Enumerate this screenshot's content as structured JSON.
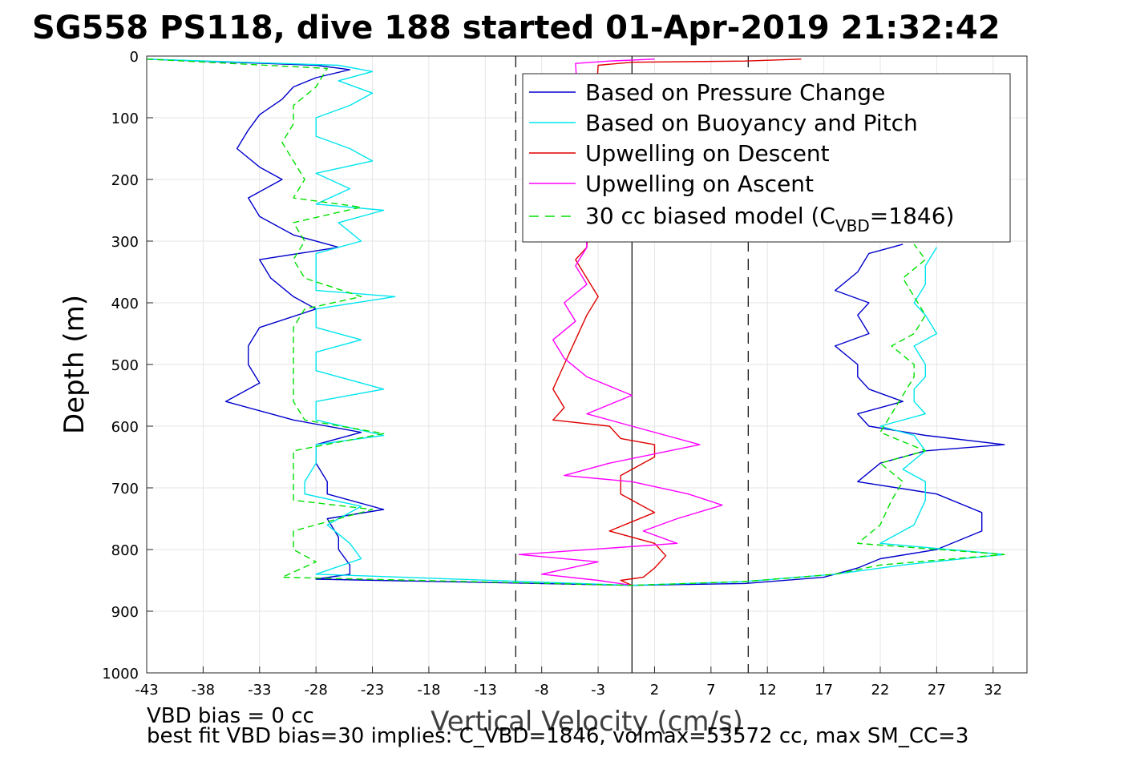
{
  "chart_data": {
    "type": "line",
    "title": "SG558 PS118, dive 188 started 01-Apr-2019 21:32:42",
    "xlabel": "Vertical Velocity (cm/s)",
    "ylabel": "Depth (m)",
    "xlim": [
      -43,
      35
    ],
    "ylim": [
      0,
      1000
    ],
    "y_reversed": true,
    "grid": true,
    "legend_position": "top-right",
    "xticks": [
      -43,
      -38,
      -33,
      -28,
      -23,
      -18,
      -13,
      -8,
      -3,
      2,
      7,
      12,
      17,
      22,
      27,
      32
    ],
    "yticks": [
      0,
      100,
      200,
      300,
      400,
      500,
      600,
      700,
      800,
      900,
      1000
    ],
    "reference_lines": [
      {
        "x": -10.3,
        "style": "dashed",
        "color": "#000000"
      },
      {
        "x": 0,
        "style": "solid",
        "color": "#000000"
      },
      {
        "x": 10.3,
        "style": "dashed",
        "color": "#000000"
      }
    ],
    "series": [
      {
        "name": "Based on Pressure Change",
        "color": "#0000cc",
        "style": "solid",
        "points": [
          [
            -43,
            5
          ],
          [
            -28,
            15
          ],
          [
            -25,
            22
          ],
          [
            -28,
            35
          ],
          [
            -30,
            50
          ],
          [
            -31,
            70
          ],
          [
            -33,
            95
          ],
          [
            -34,
            120
          ],
          [
            -35,
            150
          ],
          [
            -33,
            180
          ],
          [
            -31,
            200
          ],
          [
            -34,
            230
          ],
          [
            -33,
            260
          ],
          [
            -30,
            290
          ],
          [
            -26,
            310
          ],
          [
            -33,
            330
          ],
          [
            -32,
            360
          ],
          [
            -30,
            390
          ],
          [
            -28,
            410
          ],
          [
            -33,
            440
          ],
          [
            -34,
            470
          ],
          [
            -34,
            500
          ],
          [
            -33,
            530
          ],
          [
            -36,
            560
          ],
          [
            -32,
            580
          ],
          [
            -30,
            590
          ],
          [
            -24,
            610
          ],
          [
            -28,
            630
          ],
          [
            -28,
            660
          ],
          [
            -27,
            690
          ],
          [
            -27,
            710
          ],
          [
            -22,
            735
          ],
          [
            -27,
            750
          ],
          [
            -26,
            780
          ],
          [
            -26,
            800
          ],
          [
            -25,
            825
          ],
          [
            -25,
            840
          ],
          [
            -28,
            848
          ],
          [
            0,
            858
          ],
          [
            10,
            855
          ],
          [
            17,
            845
          ],
          [
            20,
            830
          ],
          [
            22,
            815
          ],
          [
            27,
            800
          ],
          [
            31,
            770
          ],
          [
            31,
            740
          ],
          [
            27,
            710
          ],
          [
            20,
            690
          ],
          [
            22,
            660
          ],
          [
            26,
            640
          ],
          [
            33,
            630
          ],
          [
            26,
            615
          ],
          [
            21,
            600
          ],
          [
            20,
            580
          ],
          [
            24,
            560
          ],
          [
            21,
            540
          ],
          [
            20,
            520
          ],
          [
            20,
            500
          ],
          [
            18,
            470
          ],
          [
            21,
            450
          ],
          [
            20,
            420
          ],
          [
            21,
            400
          ],
          [
            18,
            380
          ],
          [
            20,
            350
          ],
          [
            21,
            320
          ],
          [
            24,
            305
          ]
        ]
      },
      {
        "name": "Based on Buoyancy and Pitch",
        "color": "#00e5ee",
        "style": "solid",
        "points": [
          [
            -43,
            5
          ],
          [
            -26,
            15
          ],
          [
            -23,
            25
          ],
          [
            -26,
            40
          ],
          [
            -23,
            60
          ],
          [
            -25,
            80
          ],
          [
            -28,
            100
          ],
          [
            -28,
            130
          ],
          [
            -25,
            150
          ],
          [
            -23,
            170
          ],
          [
            -28,
            190
          ],
          [
            -25,
            215
          ],
          [
            -28,
            240
          ],
          [
            -22,
            250
          ],
          [
            -26,
            270
          ],
          [
            -24,
            300
          ],
          [
            -28,
            320
          ],
          [
            -28,
            350
          ],
          [
            -28,
            380
          ],
          [
            -21,
            390
          ],
          [
            -28,
            410
          ],
          [
            -28,
            440
          ],
          [
            -24,
            460
          ],
          [
            -28,
            480
          ],
          [
            -28,
            510
          ],
          [
            -22,
            540
          ],
          [
            -28,
            560
          ],
          [
            -28,
            590
          ],
          [
            -22,
            615
          ],
          [
            -28,
            630
          ],
          [
            -28,
            660
          ],
          [
            -29,
            690
          ],
          [
            -29,
            710
          ],
          [
            -24,
            730
          ],
          [
            -27,
            760
          ],
          [
            -25,
            790
          ],
          [
            -24,
            815
          ],
          [
            -28,
            840
          ],
          [
            0,
            858
          ],
          [
            10,
            852
          ],
          [
            18,
            840
          ],
          [
            24,
            825
          ],
          [
            33,
            808
          ],
          [
            22,
            790
          ],
          [
            25,
            760
          ],
          [
            26,
            720
          ],
          [
            26,
            690
          ],
          [
            24,
            670
          ],
          [
            26,
            640
          ],
          [
            25,
            615
          ],
          [
            22,
            600
          ],
          [
            26,
            580
          ],
          [
            25,
            560
          ],
          [
            25,
            540
          ],
          [
            26,
            520
          ],
          [
            26,
            500
          ],
          [
            25,
            470
          ],
          [
            27,
            450
          ],
          [
            26,
            420
          ],
          [
            25,
            400
          ],
          [
            26,
            370
          ],
          [
            26,
            340
          ],
          [
            27,
            310
          ]
        ]
      },
      {
        "name": "Upwelling on Descent",
        "color": "#e00000",
        "style": "solid",
        "points": [
          [
            15,
            5
          ],
          [
            10,
            8
          ],
          [
            0,
            10
          ],
          [
            -3,
            15
          ],
          [
            -4,
            310
          ],
          [
            -5,
            330
          ],
          [
            -4,
            360
          ],
          [
            -3,
            390
          ],
          [
            -4,
            420
          ],
          [
            -5,
            460
          ],
          [
            -6,
            500
          ],
          [
            -7,
            540
          ],
          [
            -6,
            570
          ],
          [
            -7,
            590
          ],
          [
            -2,
            600
          ],
          [
            -1,
            620
          ],
          [
            2,
            630
          ],
          [
            2,
            650
          ],
          [
            -1,
            680
          ],
          [
            -1,
            710
          ],
          [
            2,
            740
          ],
          [
            -2,
            770
          ],
          [
            2,
            790
          ],
          [
            3,
            810
          ],
          [
            2,
            830
          ],
          [
            1,
            845
          ],
          [
            -1,
            850
          ],
          [
            0,
            858
          ]
        ]
      },
      {
        "name": "Upwelling on Ascent",
        "color": "#ff00ff",
        "style": "solid",
        "points": [
          [
            2,
            5
          ],
          [
            -2,
            8
          ],
          [
            -5,
            12
          ],
          [
            -4,
            310
          ],
          [
            -5,
            340
          ],
          [
            -4,
            370
          ],
          [
            -6,
            400
          ],
          [
            -5,
            430
          ],
          [
            -7,
            460
          ],
          [
            -6,
            490
          ],
          [
            -4,
            520
          ],
          [
            0,
            550
          ],
          [
            -4,
            580
          ],
          [
            0,
            600
          ],
          [
            6,
            630
          ],
          [
            -2,
            660
          ],
          [
            -6,
            680
          ],
          [
            0,
            690
          ],
          [
            5,
            710
          ],
          [
            8,
            728
          ],
          [
            4,
            750
          ],
          [
            1,
            770
          ],
          [
            4,
            790
          ],
          [
            -10,
            808
          ],
          [
            -3,
            820
          ],
          [
            -8,
            840
          ],
          [
            -3,
            850
          ],
          [
            0,
            858
          ]
        ]
      },
      {
        "name": "30 cc biased model (C_VBD=1846)",
        "color": "#00e000",
        "style": "dashed",
        "points": [
          [
            -43,
            5
          ],
          [
            -27,
            20
          ],
          [
            -28,
            50
          ],
          [
            -30,
            80
          ],
          [
            -30,
            110
          ],
          [
            -31,
            140
          ],
          [
            -30,
            170
          ],
          [
            -29,
            200
          ],
          [
            -30,
            230
          ],
          [
            -24,
            245
          ],
          [
            -30,
            270
          ],
          [
            -29,
            300
          ],
          [
            -30,
            330
          ],
          [
            -29,
            360
          ],
          [
            -24,
            390
          ],
          [
            -29,
            410
          ],
          [
            -30,
            440
          ],
          [
            -30,
            470
          ],
          [
            -30,
            500
          ],
          [
            -30,
            530
          ],
          [
            -30,
            560
          ],
          [
            -29,
            590
          ],
          [
            -22,
            612
          ],
          [
            -30,
            640
          ],
          [
            -30,
            670
          ],
          [
            -30,
            700
          ],
          [
            -30,
            720
          ],
          [
            -23,
            735
          ],
          [
            -30,
            770
          ],
          [
            -30,
            800
          ],
          [
            -28,
            820
          ],
          [
            -31,
            845
          ],
          [
            0,
            858
          ],
          [
            10,
            852
          ],
          [
            18,
            840
          ],
          [
            22,
            825
          ],
          [
            33,
            808
          ],
          [
            20,
            790
          ],
          [
            22,
            760
          ],
          [
            23,
            720
          ],
          [
            24,
            690
          ],
          [
            22,
            660
          ],
          [
            26,
            640
          ],
          [
            22,
            610
          ],
          [
            23,
            580
          ],
          [
            24,
            550
          ],
          [
            25,
            520
          ],
          [
            25,
            500
          ],
          [
            23,
            470
          ],
          [
            25,
            450
          ],
          [
            26,
            420
          ],
          [
            25,
            390
          ],
          [
            24,
            360
          ],
          [
            26,
            330
          ],
          [
            25,
            305
          ]
        ]
      }
    ]
  },
  "legend": {
    "items": [
      {
        "label": "Based on Pressure Change",
        "color": "#0000cc",
        "dashed": false
      },
      {
        "label": "Based on Buoyancy and Pitch",
        "color": "#00e5ee",
        "dashed": false
      },
      {
        "label": "Upwelling on Descent",
        "color": "#e00000",
        "dashed": false
      },
      {
        "label": "Upwelling on Ascent",
        "color": "#ff00ff",
        "dashed": false
      }
    ],
    "model_label_pre": "30 cc biased model (C",
    "model_label_sub": "VBD",
    "model_label_post": "=1846)",
    "model_color": "#00e000"
  },
  "footer": {
    "line1": "VBD bias = 0 cc",
    "line2": "best fit VBD bias=30 implies: C_VBD=1846, volmax=53572 cc, max SM_CC=3"
  }
}
